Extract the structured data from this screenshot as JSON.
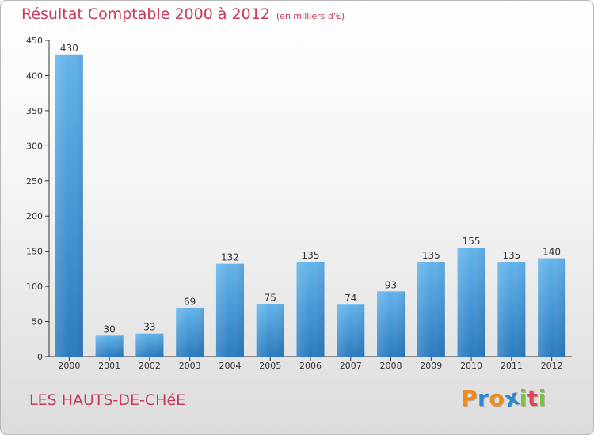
{
  "header": {
    "title": "Résultat Comptable 2000 à 2012",
    "subtitle": "(en milliers d'€)"
  },
  "footer": {
    "place": "LES HAUTS-DE-CHéE",
    "logo": [
      "P",
      "r",
      "o",
      "x",
      "i",
      "t",
      "i"
    ]
  },
  "colors": {
    "title": "#c83a5a",
    "bar_top": "#63b4ec",
    "bar_bottom": "#2a7bbf",
    "logo": [
      "#f08a1a",
      "#2f86d1",
      "#f08a1a",
      "#2f86d1",
      "#7cc23e",
      "#e0455a",
      "#7cc23e"
    ]
  },
  "chart_data": {
    "type": "bar",
    "title": "Résultat Comptable 2000 à 2012",
    "subtitle": "(en milliers d'€)",
    "categories": [
      "2000",
      "2001",
      "2002",
      "2003",
      "2004",
      "2005",
      "2006",
      "2007",
      "2008",
      "2009",
      "2010",
      "2011",
      "2012"
    ],
    "values": [
      430,
      30,
      33,
      69,
      132,
      75,
      135,
      74,
      93,
      135,
      155,
      135,
      140
    ],
    "ylim": [
      0,
      450
    ],
    "yticks": [
      0,
      50,
      100,
      150,
      200,
      250,
      300,
      350,
      400,
      450
    ],
    "xlabel": "",
    "ylabel": "",
    "grid": false
  }
}
